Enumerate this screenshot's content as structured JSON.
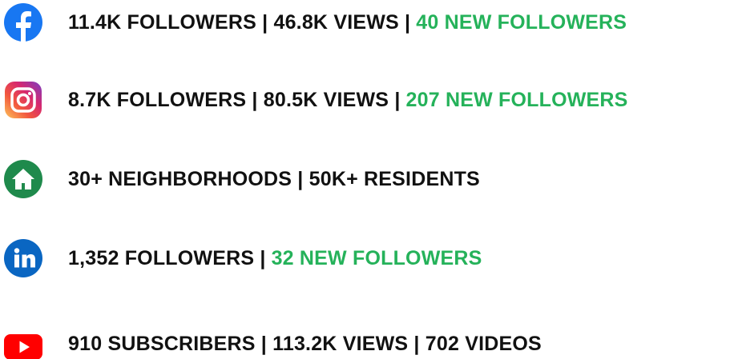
{
  "rows": [
    {
      "main": "11.4K FOLLOWERS | 46.8K VIEWS |",
      "highlight": "40 NEW FOLLOWERS"
    },
    {
      "main": "8.7K FOLLOWERS | 80.5K VIEWS |",
      "highlight": "207 NEW FOLLOWERS"
    },
    {
      "main": "30+ NEIGHBORHOODS | 50K+ RESIDENTS"
    },
    {
      "main": "1,352 FOLLOWERS |",
      "highlight": "32 NEW FOLLOWERS"
    },
    {
      "main": "910 SUBSCRIBERS | 113.2K VIEWS | 702 VIDEOS"
    }
  ]
}
